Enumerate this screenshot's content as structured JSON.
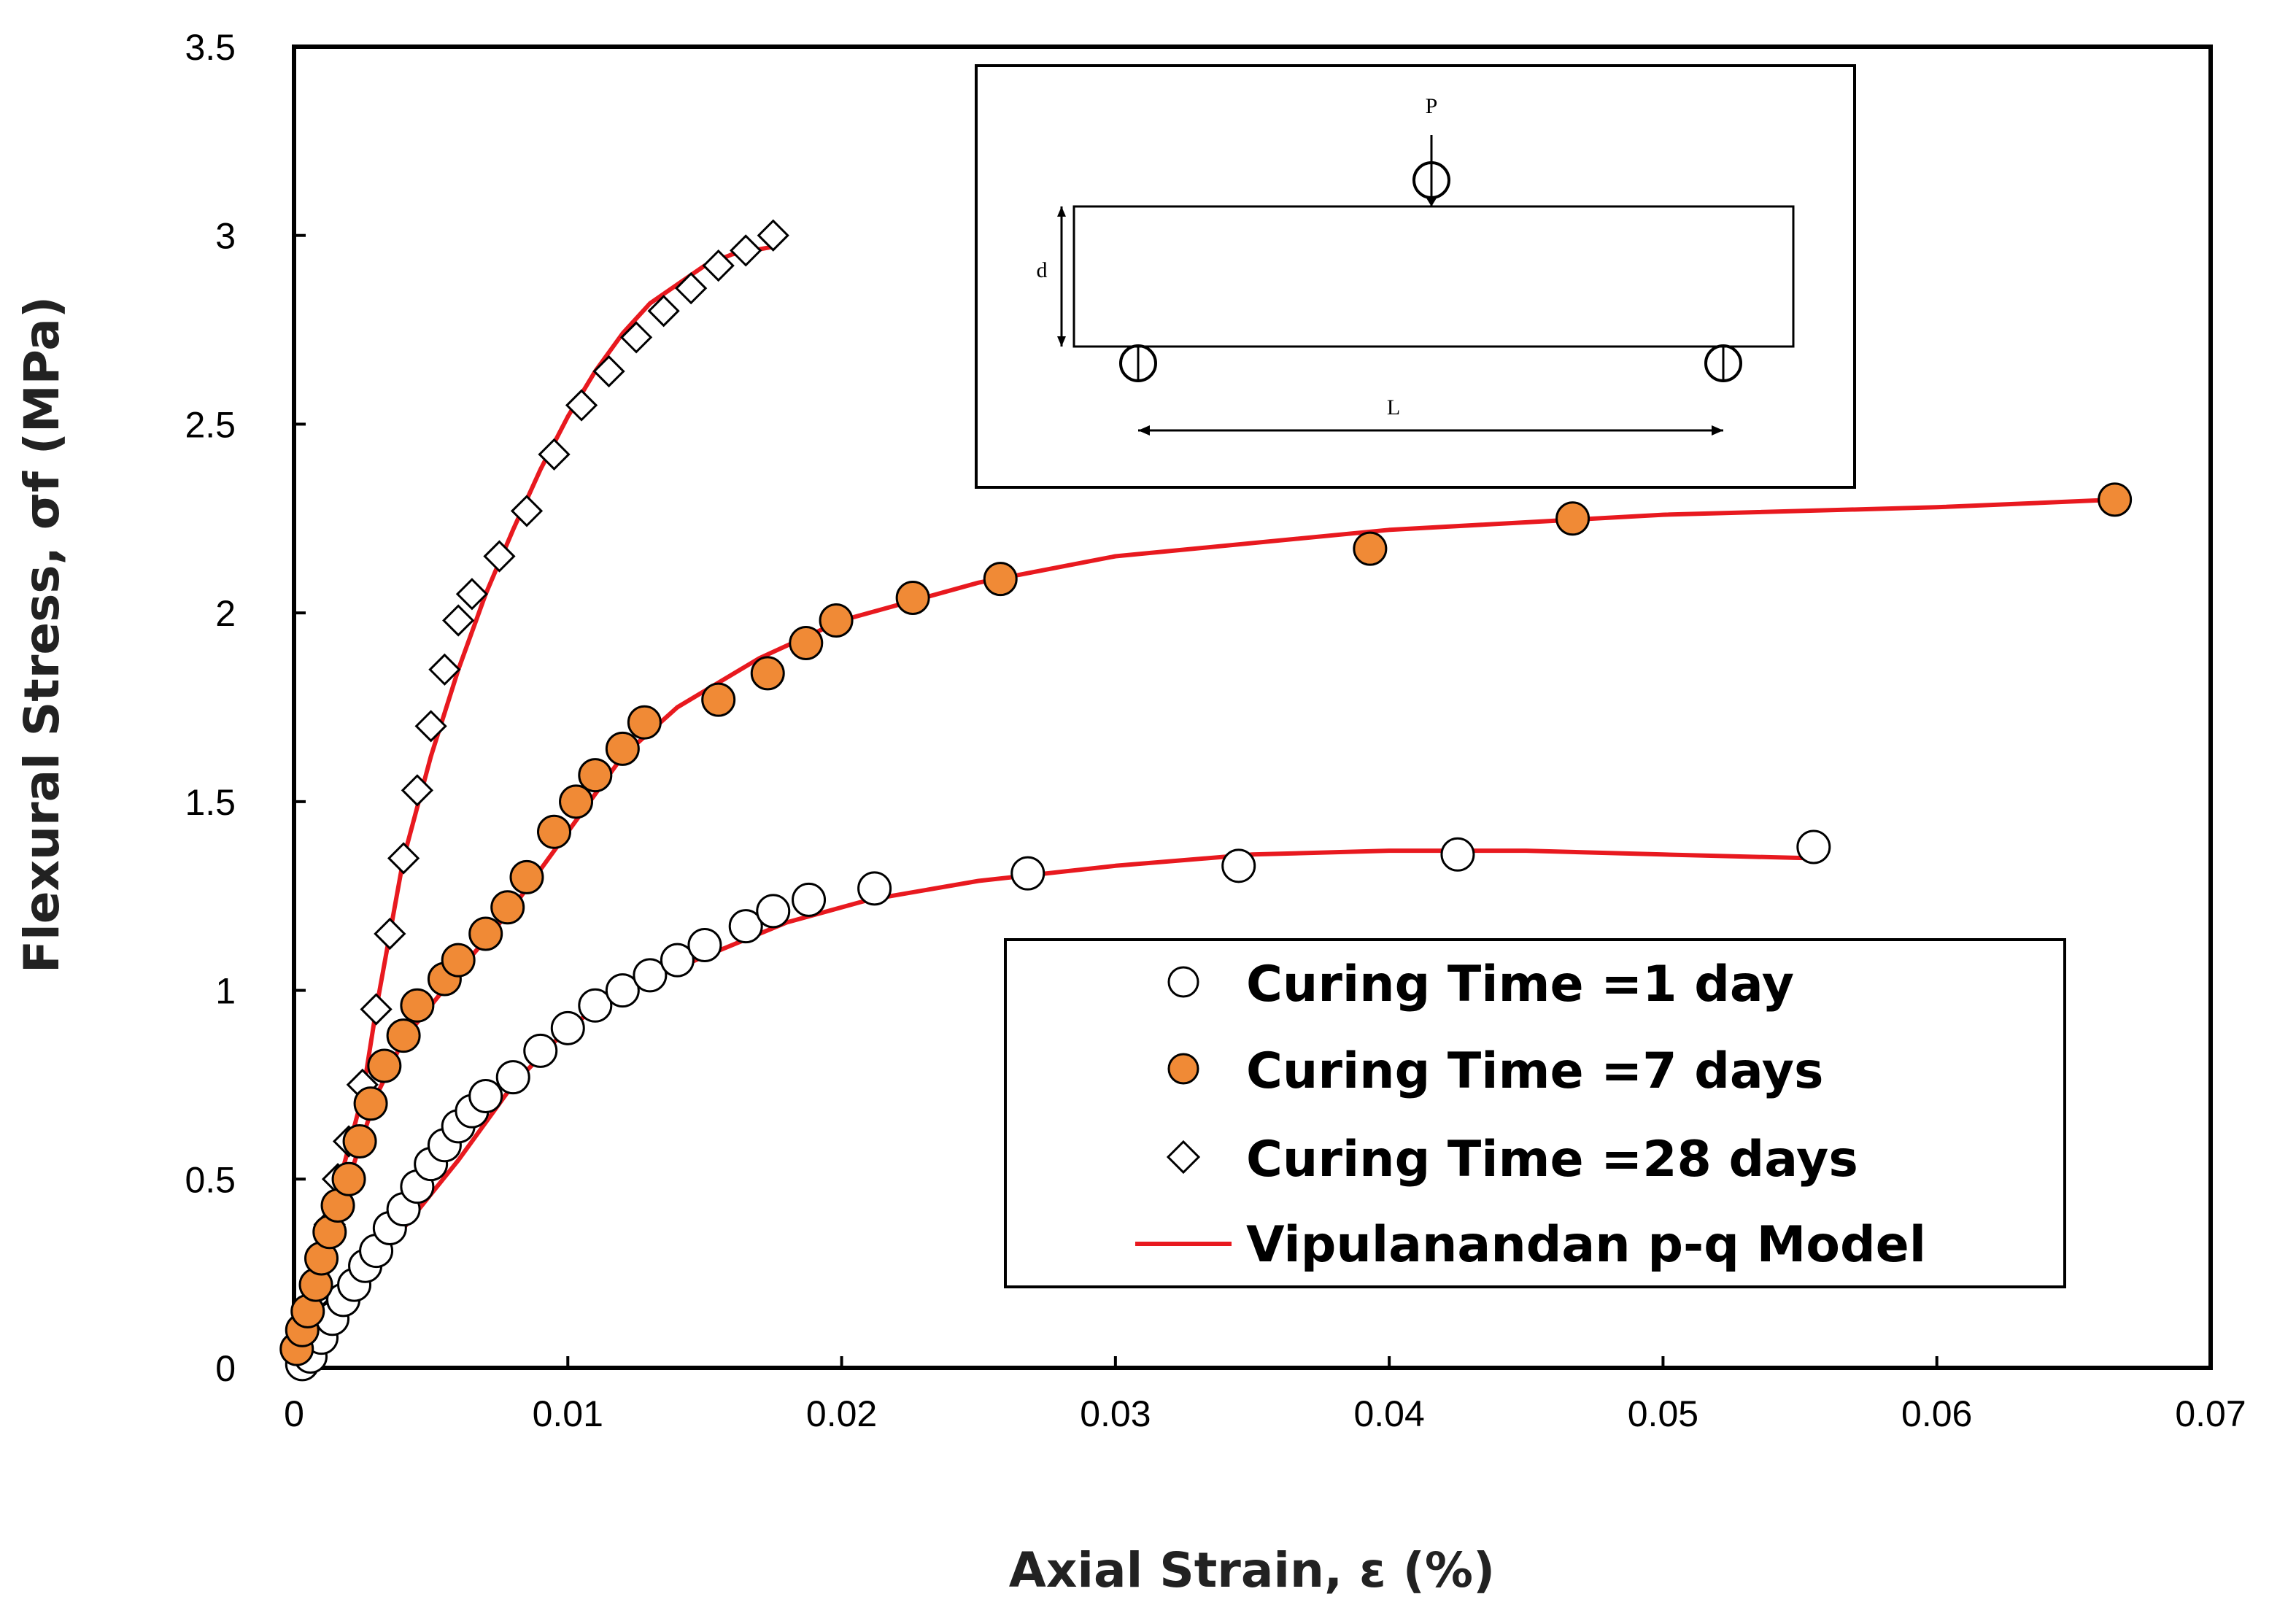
{
  "chart_data": {
    "type": "scatter",
    "xlabel": "Axial Strain, ε (%)",
    "ylabel": "Flexural Stress, σf (MPa)",
    "xlim": [
      0,
      0.07
    ],
    "ylim": [
      0,
      3.5
    ],
    "xticks": [
      "0",
      "0.01",
      "0.02",
      "0.03",
      "0.04",
      "0.05",
      "0.06",
      "0.07"
    ],
    "yticks": [
      "0",
      "0.5",
      "1",
      "1.5",
      "2",
      "2.5",
      "3",
      "3.5"
    ],
    "grid": false,
    "legend_position": "bottom-right",
    "series": [
      {
        "name": "Curing Time =1 day",
        "marker": "open-circle",
        "x": [
          0.0003,
          0.0006,
          0.001,
          0.0014,
          0.0018,
          0.0022,
          0.0026,
          0.003,
          0.0035,
          0.004,
          0.0045,
          0.005,
          0.0055,
          0.006,
          0.0065,
          0.007,
          0.008,
          0.009,
          0.01,
          0.011,
          0.012,
          0.013,
          0.014,
          0.015,
          0.0165,
          0.0175,
          0.0188,
          0.0212,
          0.0268,
          0.0345,
          0.0425,
          0.0555
        ],
        "y": [
          0.01,
          0.03,
          0.08,
          0.13,
          0.18,
          0.22,
          0.27,
          0.31,
          0.37,
          0.42,
          0.48,
          0.54,
          0.59,
          0.64,
          0.68,
          0.72,
          0.77,
          0.84,
          0.9,
          0.96,
          1.0,
          1.04,
          1.08,
          1.12,
          1.17,
          1.21,
          1.24,
          1.27,
          1.31,
          1.33,
          1.36,
          1.38
        ]
      },
      {
        "name": "Curing Time =7 days",
        "marker": "filled-circle",
        "x": [
          0.0001,
          0.0003,
          0.0005,
          0.0008,
          0.001,
          0.0013,
          0.0016,
          0.002,
          0.0024,
          0.0028,
          0.0033,
          0.004,
          0.0045,
          0.0055,
          0.006,
          0.007,
          0.0078,
          0.0085,
          0.0095,
          0.0103,
          0.011,
          0.012,
          0.0128,
          0.0155,
          0.0173,
          0.0187,
          0.0198,
          0.0226,
          0.0258,
          0.0393,
          0.0467,
          0.0665
        ],
        "y": [
          0.05,
          0.1,
          0.15,
          0.22,
          0.29,
          0.36,
          0.43,
          0.5,
          0.6,
          0.7,
          0.8,
          0.88,
          0.96,
          1.03,
          1.08,
          1.15,
          1.22,
          1.3,
          1.42,
          1.5,
          1.57,
          1.64,
          1.71,
          1.77,
          1.84,
          1.92,
          1.98,
          2.04,
          2.09,
          2.17,
          2.25,
          2.3
        ]
      },
      {
        "name": "Curing Time =28 days",
        "marker": "open-diamond",
        "x": [
          0.0002,
          0.0004,
          0.0007,
          0.001,
          0.0013,
          0.0016,
          0.002,
          0.0025,
          0.003,
          0.0035,
          0.004,
          0.0045,
          0.005,
          0.0055,
          0.006,
          0.0065,
          0.0075,
          0.0085,
          0.0095,
          0.0105,
          0.0115,
          0.0125,
          0.0135,
          0.0145,
          0.0155,
          0.0165,
          0.0175
        ],
        "y": [
          0.04,
          0.1,
          0.18,
          0.28,
          0.38,
          0.5,
          0.6,
          0.75,
          0.95,
          1.15,
          1.35,
          1.53,
          1.7,
          1.85,
          1.98,
          2.05,
          2.15,
          2.27,
          2.42,
          2.55,
          2.64,
          2.73,
          2.8,
          2.86,
          2.92,
          2.96,
          3.0
        ]
      },
      {
        "name": "Vipulanandan p-q Model",
        "marker": "line",
        "color": "#e8191f",
        "curves": [
          {
            "x": [
              0,
              0.002,
              0.004,
              0.006,
              0.008,
              0.01,
              0.012,
              0.015,
              0.018,
              0.021,
              0.025,
              0.03,
              0.035,
              0.04,
              0.045,
              0.05,
              0.0555
            ],
            "y": [
              0,
              0.2,
              0.37,
              0.55,
              0.75,
              0.9,
              1.0,
              1.09,
              1.18,
              1.24,
              1.29,
              1.33,
              1.36,
              1.37,
              1.37,
              1.36,
              1.35
            ]
          },
          {
            "x": [
              0,
              0.001,
              0.002,
              0.003,
              0.004,
              0.006,
              0.008,
              0.01,
              0.012,
              0.014,
              0.017,
              0.02,
              0.025,
              0.03,
              0.04,
              0.05,
              0.06,
              0.0665
            ],
            "y": [
              0,
              0.25,
              0.5,
              0.72,
              0.87,
              1.05,
              1.22,
              1.42,
              1.62,
              1.75,
              1.88,
              1.98,
              2.08,
              2.15,
              2.22,
              2.26,
              2.28,
              2.3
            ]
          },
          {
            "x": [
              0,
              0.0015,
              0.0025,
              0.003,
              0.004,
              0.005,
              0.006,
              0.007,
              0.008,
              0.009,
              0.01,
              0.011,
              0.012,
              0.013,
              0.014,
              0.015,
              0.016,
              0.0175
            ],
            "y": [
              0,
              0.45,
              0.72,
              0.95,
              1.35,
              1.62,
              1.85,
              2.05,
              2.22,
              2.38,
              2.52,
              2.64,
              2.74,
              2.82,
              2.87,
              2.92,
              2.95,
              2.97
            ]
          }
        ]
      }
    ],
    "inset_labels": {
      "load": "P",
      "depth": "d",
      "span": "L"
    }
  }
}
